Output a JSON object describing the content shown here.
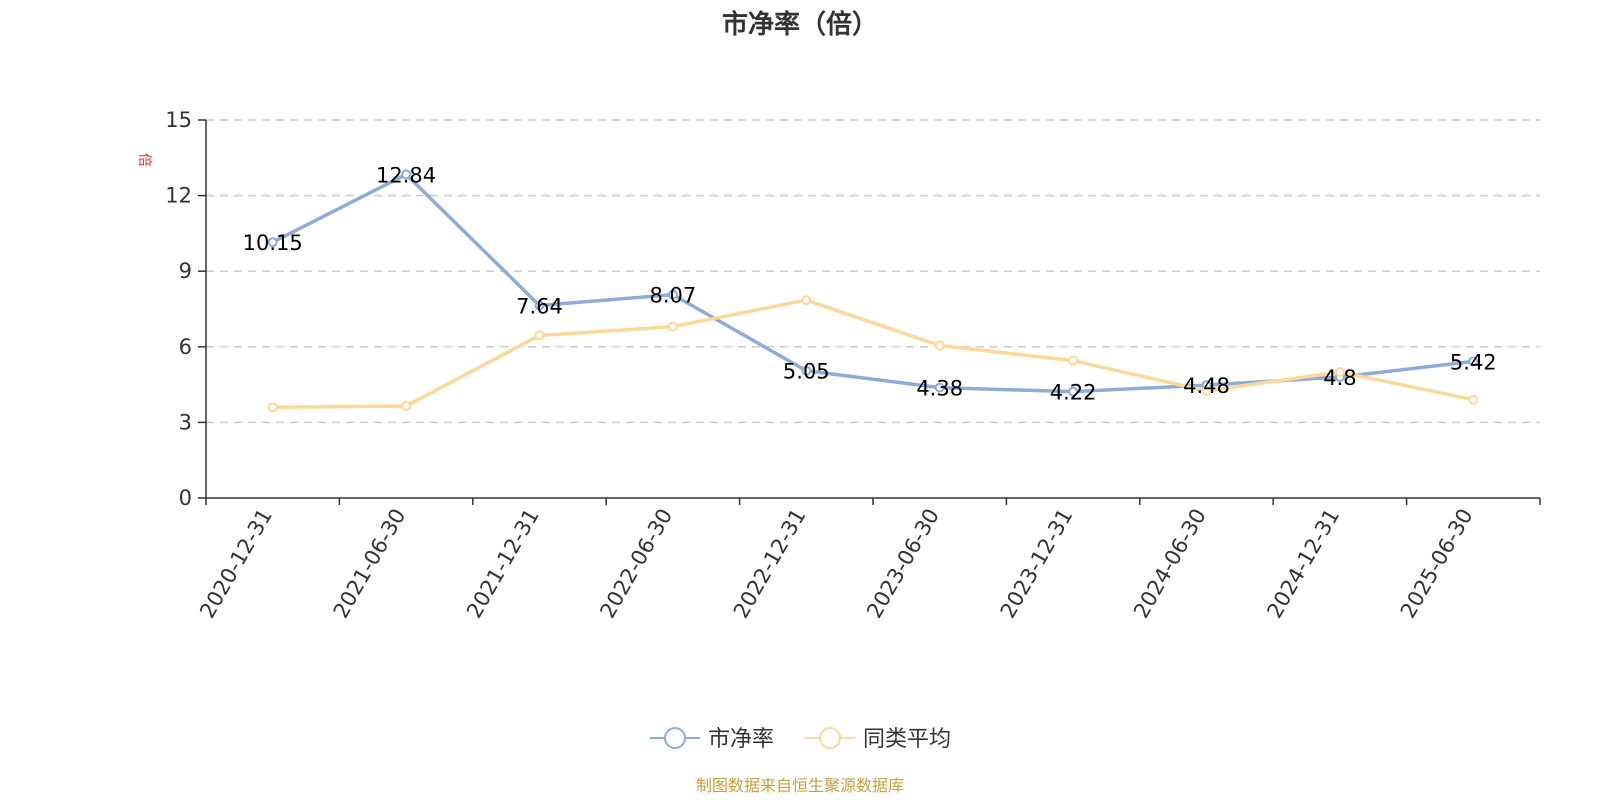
{
  "chart_data": {
    "type": "line",
    "title": "市净率（倍）",
    "ylabel": "倍",
    "ylim": [
      0,
      15
    ],
    "yticks": [
      0,
      3,
      6,
      9,
      12,
      15
    ],
    "grid": true,
    "legend_position": "bottom-center",
    "categories": [
      "2020-12-31",
      "2021-06-30",
      "2021-12-31",
      "2022-06-30",
      "2022-12-31",
      "2023-06-30",
      "2023-12-31",
      "2024-06-30",
      "2024-12-31",
      "2025-06-30"
    ],
    "series": [
      {
        "name": "市净率",
        "color": "#8eacd8",
        "values": [
          10.15,
          12.84,
          7.64,
          8.07,
          5.05,
          4.38,
          4.22,
          4.48,
          4.8,
          5.42
        ],
        "labels": [
          "10.15",
          "12.84",
          "7.64",
          "8.07",
          "5.05",
          "4.38",
          "4.22",
          "4.48",
          "4.8",
          "5.42"
        ]
      },
      {
        "name": "同类平均",
        "color": "#fdd898",
        "values": [
          3.6,
          3.65,
          6.45,
          6.8,
          7.85,
          6.05,
          5.45,
          4.25,
          5.0,
          3.9
        ]
      }
    ],
    "source": "制图数据来自恒生聚源数据库",
    "colors": {
      "unit_label": "#e83030",
      "axis": "#333333",
      "grid": "#cccccc",
      "source": "#c8a040"
    }
  }
}
